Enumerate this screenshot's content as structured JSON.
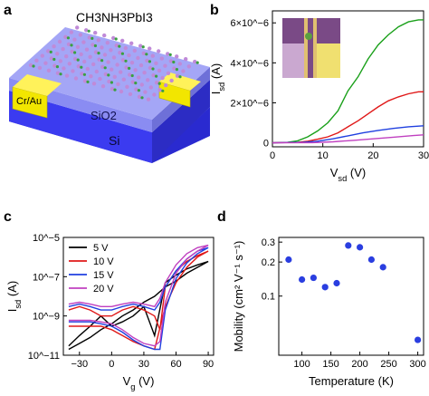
{
  "panel_a": {
    "letter": "a",
    "material_formula": "CH3NH3PbI3",
    "contact_label": "Cr/Au",
    "oxide_label": "SiO2",
    "substrate_label": "Si",
    "colors": {
      "substrate": "#3b3bf0",
      "oxide": "#8a8cf2",
      "contact": "#f2e600",
      "crystal": "#c08ad8"
    }
  },
  "chart_data": [
    {
      "panel": "b",
      "type": "line",
      "title": "",
      "xlabel": "V_sd (V)",
      "ylabel": "I_sd (A)",
      "xlim": [
        0,
        30
      ],
      "ylim": [
        -2e-07,
        6.6e-06
      ],
      "xticks": [
        0,
        10,
        20,
        30
      ],
      "yticks": [
        0,
        2e-06,
        4e-06,
        6e-06
      ],
      "ytick_labels": [
        "0",
        "2×10^-6",
        "4×10^-6",
        "6×10^-6"
      ],
      "inset": "optical micrograph of device",
      "series": [
        {
          "color": "#1aa01a",
          "x": [
            0,
            3,
            5,
            7,
            9,
            11,
            13,
            15,
            17,
            19,
            21,
            23,
            25,
            27,
            29,
            30
          ],
          "y": [
            0,
            2e-08,
            1e-07,
            3e-07,
            6e-07,
            1e-06,
            1.6e-06,
            2.6e-06,
            3.3e-06,
            4.2e-06,
            4.9e-06,
            5.4e-06,
            5.8e-06,
            6.05e-06,
            6.15e-06,
            6.15e-06
          ]
        },
        {
          "color": "#e01818",
          "x": [
            0,
            5,
            7,
            9,
            11,
            13,
            15,
            17,
            19,
            21,
            23,
            25,
            27,
            29,
            30
          ],
          "y": [
            0,
            2e-08,
            8e-08,
            1.8e-07,
            3e-07,
            5e-07,
            8e-07,
            1.1e-06,
            1.45e-06,
            1.8e-06,
            2.1e-06,
            2.3e-06,
            2.45e-06,
            2.55e-06,
            2.55e-06
          ]
        },
        {
          "color": "#2040e0",
          "x": [
            0,
            6,
            9,
            12,
            15,
            18,
            21,
            24,
            27,
            30
          ],
          "y": [
            0,
            2e-08,
            8e-08,
            2e-07,
            3.5e-07,
            5e-07,
            6.2e-07,
            7.2e-07,
            8e-07,
            8.5e-07
          ]
        },
        {
          "color": "#c040c0",
          "x": [
            0,
            8,
            12,
            16,
            20,
            24,
            28,
            30
          ],
          "y": [
            0,
            1e-08,
            5e-08,
            1.2e-07,
            2e-07,
            2.8e-07,
            3.6e-07,
            4e-07
          ]
        }
      ]
    },
    {
      "panel": "c",
      "type": "line",
      "title": "",
      "xlabel": "V_g (V)",
      "ylabel": "I_sd (A)",
      "yscale": "log",
      "xlim": [
        -45,
        95
      ],
      "ylim": [
        1e-11,
        1e-05
      ],
      "xticks": [
        -30,
        0,
        30,
        60,
        90
      ],
      "yticks": [
        1e-11,
        1e-09,
        1e-07,
        1e-05
      ],
      "ytick_labels": [
        "10^-11",
        "10^-9",
        "10^-7",
        "10^-5"
      ],
      "legend_position": "top-left",
      "series": [
        {
          "name": "5 V",
          "color": "#000000",
          "x": [
            -40,
            -30,
            -20,
            -10,
            0,
            10,
            20,
            30,
            40,
            50,
            60,
            70,
            80,
            90,
            80,
            70,
            60,
            50,
            40,
            30,
            20,
            10,
            0,
            -10,
            -20,
            -30,
            -40
          ],
          "y": [
            2e-11,
            4e-11,
            8e-11,
            2e-10,
            4e-10,
            1e-09,
            2e-09,
            5e-09,
            1e-08,
            3e-08,
            6e-08,
            1.5e-07,
            3e-07,
            6e-07,
            4e-07,
            2.5e-07,
            1.2e-07,
            5e-08,
            1e-10,
            3e-09,
            1e-09,
            5e-10,
            3e-10,
            1e-09,
            3e-10,
            1e-10,
            3e-11
          ]
        },
        {
          "name": "10 V",
          "color": "#e01818",
          "x": [
            -40,
            -30,
            -20,
            -10,
            0,
            10,
            20,
            30,
            40,
            50,
            60,
            70,
            80,
            90,
            80,
            70,
            60,
            50,
            45,
            40,
            30,
            20,
            10,
            0,
            -10,
            -20,
            -30,
            -40
          ],
          "y": [
            3e-10,
            3e-10,
            3e-10,
            3e-10,
            2e-10,
            1e-10,
            5e-11,
            3e-11,
            2e-11,
            3e-09,
            5e-08,
            3e-07,
            1e-06,
            2e-06,
            1.2e-06,
            6e-07,
            2e-07,
            3e-08,
            2e-10,
            1e-09,
            2e-09,
            3e-09,
            2e-09,
            1e-09,
            1e-09,
            2e-09,
            3e-09,
            2e-09
          ]
        },
        {
          "name": "15 V",
          "color": "#2040e0",
          "x": [
            -40,
            -30,
            -20,
            -10,
            0,
            10,
            20,
            30,
            40,
            45,
            50,
            60,
            70,
            80,
            90,
            80,
            70,
            60,
            50,
            45,
            40,
            30,
            20,
            10,
            0,
            -10,
            -20,
            -30,
            -40
          ],
          "y": [
            5e-10,
            5e-10,
            5e-10,
            4e-10,
            3e-10,
            1.5e-10,
            6e-11,
            3e-11,
            2e-11,
            2e-11,
            2e-09,
            8e-08,
            5e-07,
            1.5e-06,
            3e-06,
            2e-06,
            8e-07,
            2e-07,
            3e-08,
            5e-09,
            2e-09,
            3e-09,
            4e-09,
            3e-09,
            2e-09,
            2e-09,
            3e-09,
            4e-09,
            3e-09
          ]
        },
        {
          "name": "20 V",
          "color": "#c040c0",
          "x": [
            -40,
            -30,
            -20,
            -10,
            0,
            10,
            20,
            30,
            40,
            45,
            50,
            60,
            70,
            80,
            90,
            80,
            70,
            60,
            50,
            45,
            40,
            30,
            20,
            10,
            0,
            -10,
            -20,
            -30,
            -40
          ],
          "y": [
            6e-10,
            6e-10,
            6e-10,
            5e-10,
            4e-10,
            2e-10,
            8e-11,
            4e-11,
            3e-11,
            5e-11,
            5e-09,
            1.5e-07,
            8e-07,
            2e-06,
            4e-06,
            3e-06,
            1.5e-06,
            4e-07,
            5e-08,
            8e-09,
            3e-09,
            4e-09,
            5e-09,
            4e-09,
            3e-09,
            3e-09,
            4e-09,
            5e-09,
            4e-09
          ]
        }
      ]
    },
    {
      "panel": "d",
      "type": "scatter",
      "title": "",
      "xlabel": "Temperature (K)",
      "ylabel": "Mobility (cm² V⁻¹ s⁻¹)",
      "yscale": "log",
      "xlim": [
        60,
        310
      ],
      "ylim": [
        0.03,
        0.33
      ],
      "xticks": [
        100,
        150,
        200,
        250,
        300
      ],
      "yticks": [
        0.1,
        0.2,
        0.3
      ],
      "ytick_labels": [
        "0.1",
        "0.2",
        "0.3"
      ],
      "marker_color": "#2a3ee0",
      "x": [
        77,
        100,
        120,
        140,
        160,
        180,
        200,
        220,
        240,
        300
      ],
      "y": [
        0.21,
        0.14,
        0.145,
        0.12,
        0.13,
        0.28,
        0.27,
        0.21,
        0.18,
        0.041
      ]
    }
  ]
}
